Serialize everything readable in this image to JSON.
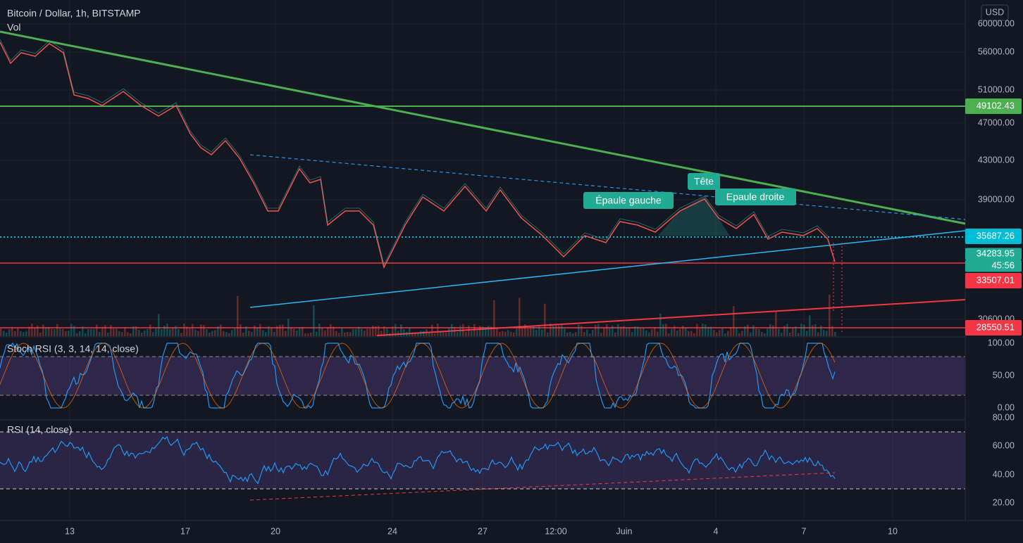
{
  "header": {
    "title": "Bitcoin / Dollar, 1h, BITSTAMP",
    "volume": "Vol",
    "currency": "USD"
  },
  "price_axis": {
    "ticks": [
      "60000.00",
      "56000.00",
      "51000.00",
      "47000.00",
      "43000.00",
      "39000.00",
      "30600.00"
    ]
  },
  "badges": [
    "49102.43",
    "35687.26",
    "34283.95",
    "45:56",
    "33507.01",
    "28550.51"
  ],
  "annotations": [
    "Épaule gauche",
    "Tête",
    "Epaule droite"
  ],
  "stoch_rsi": {
    "label": "Stoch RSI (3, 3, 14, 14, close)",
    "ticks": [
      "100.00",
      "50.00",
      "0.00"
    ]
  },
  "rsi": {
    "label": "RSI (14, close)",
    "ticks": [
      "80.00",
      "60.00",
      "40.00",
      "20.00"
    ]
  },
  "time_axis": {
    "ticks": [
      "13",
      "17",
      "20",
      "24",
      "27",
      "12:00",
      "Juin",
      "4",
      "7",
      "10"
    ]
  }
}
